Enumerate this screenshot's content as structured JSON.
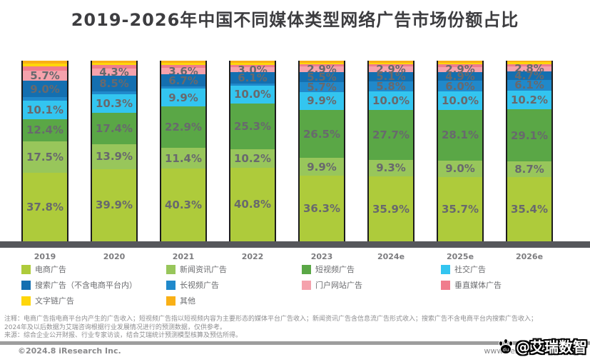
{
  "title": "2019-2026年中国不同媒体类型网络广告市场份额占比",
  "chart_data": {
    "type": "bar",
    "stacked": true,
    "unit": "%",
    "ylim": [
      0,
      100
    ],
    "grid": false,
    "legend_position": "bottom",
    "categories": [
      "2019",
      "2020",
      "2021",
      "2022",
      "2023",
      "2024e",
      "2025e",
      "2026e"
    ],
    "series": [
      {
        "key": "ecommerce",
        "name": "电商广告",
        "color": "#aecb3b",
        "values": [
          37.8,
          39.9,
          40.3,
          40.8,
          36.3,
          35.9,
          35.7,
          35.4
        ],
        "labels": [
          "37.8%",
          "39.9%",
          "40.3%",
          "40.8%",
          "36.3%",
          "35.9%",
          "35.7%",
          "35.4%"
        ]
      },
      {
        "key": "news-feed",
        "name": "新闻资讯广告",
        "color": "#98c65b",
        "values": [
          17.5,
          13.9,
          11.4,
          10.2,
          9.9,
          9.3,
          9.0,
          8.7
        ],
        "labels": [
          "17.5%",
          "13.9%",
          "11.4%",
          "10.2%",
          "9.9%",
          "9.3%",
          "9.0%",
          "8.7%"
        ]
      },
      {
        "key": "short-video",
        "name": "短视频广告",
        "color": "#5aa746",
        "values": [
          12.4,
          17.4,
          22.9,
          25.3,
          26.5,
          27.7,
          28.1,
          29.1
        ],
        "labels": [
          "12.4%",
          "17.4%",
          "22.9%",
          "25.3%",
          "26.5%",
          "27.7%",
          "28.1%",
          "29.1%"
        ]
      },
      {
        "key": "social",
        "name": "社交广告",
        "color": "#33c5f0",
        "values": [
          10.1,
          10.3,
          9.9,
          10.0,
          9.9,
          10.0,
          10.0,
          10.2
        ],
        "labels": [
          "10.1%",
          "10.3%",
          "9.9%",
          "10.0%",
          "9.9%",
          "10.0%",
          "10.0%",
          "10.2%"
        ]
      },
      {
        "key": "long-video",
        "name": "长视频广告",
        "color": "#2089cb",
        "values": [
          2.0,
          1.5,
          1.2,
          1.1,
          5.7,
          5.8,
          6.0,
          6.1
        ],
        "labels": [
          "",
          "",
          "",
          "",
          "5.7%",
          "5.8%",
          "6.0%",
          "6.1%"
        ]
      },
      {
        "key": "search",
        "name": "搜索广告（不含电商平台内）",
        "color": "#146fb0",
        "values": [
          9.0,
          8.5,
          6.7,
          6.1,
          5.5,
          5.1,
          4.9,
          4.7
        ],
        "labels": [
          "9.0%",
          "8.5%",
          "6.7%",
          "6.1%",
          "5.5%",
          "5.1%",
          "4.9%",
          "4.7%"
        ]
      },
      {
        "key": "portal",
        "name": "门户网站广告",
        "color": "#f5a2ac",
        "values": [
          5.7,
          4.3,
          3.6,
          3.0,
          2.9,
          2.9,
          2.9,
          2.8
        ],
        "labels": [
          "5.7%",
          "4.3%",
          "3.6%",
          "3.0%",
          "2.9%",
          "2.9%",
          "2.9%",
          "2.8%"
        ]
      },
      {
        "key": "vertical-media",
        "name": "垂直媒体广告",
        "color": "#f07c8c",
        "values": [
          2.5,
          1.7,
          1.5,
          1.2,
          1.3,
          1.3,
          1.4,
          1.2
        ],
        "labels": [
          "",
          "",
          "",
          "",
          "",
          "",
          "",
          ""
        ]
      },
      {
        "key": "text-link",
        "name": "文字链广告",
        "color": "#ffd60a",
        "values": [
          1.5,
          1.3,
          1.2,
          1.1,
          1.0,
          1.0,
          1.0,
          0.9
        ],
        "labels": [
          "",
          "",
          "",
          "",
          "",
          "",
          "",
          ""
        ]
      },
      {
        "key": "others",
        "name": "其他",
        "color": "#f9b016",
        "values": [
          1.5,
          1.2,
          1.3,
          1.2,
          1.0,
          1.0,
          1.0,
          0.9
        ],
        "labels": [
          "",
          "",
          "",
          "",
          "",
          "",
          "",
          ""
        ]
      }
    ]
  },
  "legend": [
    {
      "key": "ecommerce",
      "label": "电商广告",
      "color": "#aecb3b"
    },
    {
      "key": "news-feed",
      "label": "新闻资讯广告",
      "color": "#98c65b"
    },
    {
      "key": "short-video",
      "label": "短视频广告",
      "color": "#5aa746"
    },
    {
      "key": "social",
      "label": "社交广告",
      "color": "#33c5f0"
    },
    {
      "key": "search",
      "label": "搜索广告（不含电商平台内）",
      "color": "#146fb0"
    },
    {
      "key": "long-video",
      "label": "长视频广告",
      "color": "#2089cb"
    },
    {
      "key": "portal",
      "label": "门户网站广告",
      "color": "#f5a2ac"
    },
    {
      "key": "vertical-media",
      "label": "垂直媒体广告",
      "color": "#f07c8c"
    },
    {
      "key": "text-link",
      "label": "文字链广告",
      "color": "#ffd60a"
    },
    {
      "key": "others",
      "label": "其他",
      "color": "#f9b016"
    }
  ],
  "notes": [
    "注释：电商广告指电商平台内产生的广告收入；短视频广告指以短视频内容为主要形态的媒体平台广告收入；新闻资讯广告含信息流广告形式收入；搜索广告不含电商平台内搜索广告收入；",
    "2024年及以后数据为艾瑞咨询根据行业发展情况进行的预测数据，仅供参考。",
    "来源：综合企业公开财报、行业专家访谈，结合艾瑞统计预测模型核算及预估所得。"
  ],
  "footer": {
    "copyright": "©2024.8 iResearch Inc.",
    "website": "www.iresearch.com.cn"
  },
  "watermark": {
    "handle": "@艾瑞数智",
    "icon": "paw-icon"
  }
}
